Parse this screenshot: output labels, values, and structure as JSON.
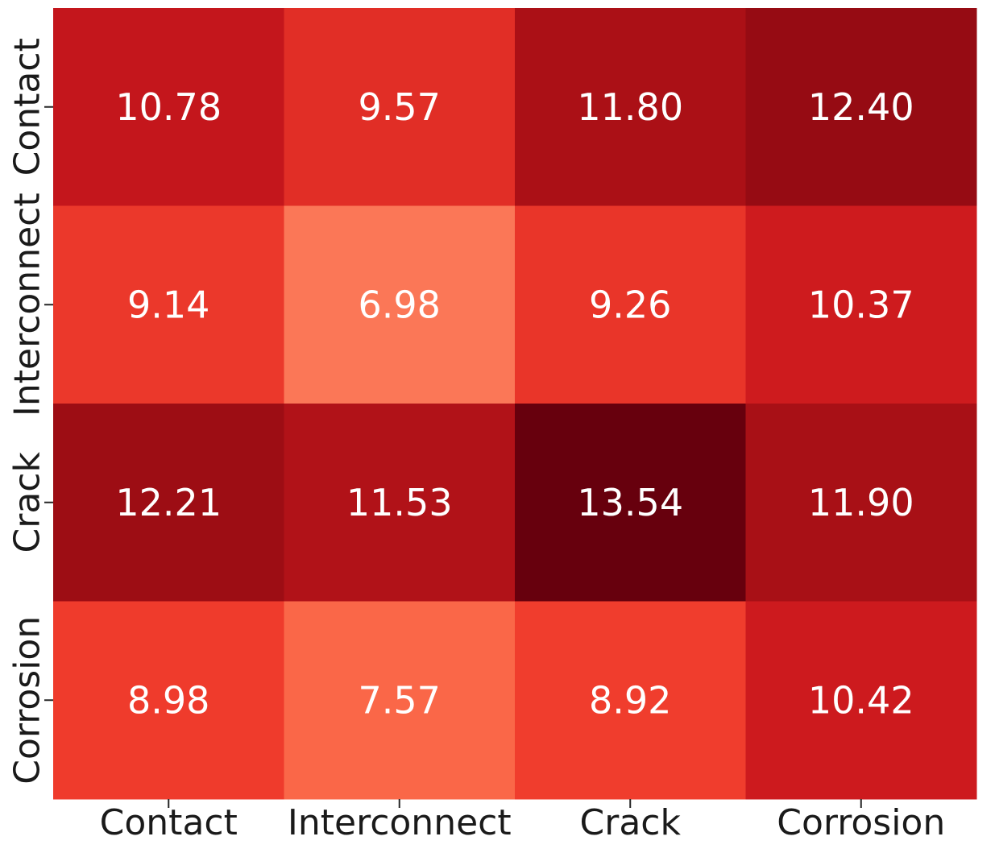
{
  "chart_data": {
    "type": "heatmap",
    "title": "",
    "xlabel": "",
    "ylabel": "",
    "x_categories": [
      "Contact",
      "Interconnect",
      "Crack",
      "Corrosion"
    ],
    "y_categories": [
      "Contact",
      "Interconnect",
      "Crack",
      "Corrosion"
    ],
    "values": [
      [
        10.78,
        9.57,
        11.8,
        12.4
      ],
      [
        9.14,
        6.98,
        9.26,
        10.37
      ],
      [
        12.21,
        11.53,
        13.54,
        11.9
      ],
      [
        8.98,
        7.57,
        8.92,
        10.42
      ]
    ],
    "value_labels": [
      [
        "10.78",
        "9.57",
        "11.80",
        "12.40"
      ],
      [
        "9.14",
        "6.98",
        "9.26",
        "10.37"
      ],
      [
        "12.21",
        "11.53",
        "13.54",
        "11.90"
      ],
      [
        "8.98",
        "7.57",
        "8.92",
        "10.42"
      ]
    ],
    "colormap": "Reds",
    "colorbar": false,
    "grid": false
  },
  "colors": {
    "cell_text": "#ffffff",
    "tick_text": "#1a1a1a",
    "tick_mark": "#262626",
    "colormap_stops": [
      "#fff5f0",
      "#fee0d2",
      "#fcbba1",
      "#fc9272",
      "#fb6a4a",
      "#ef3b2c",
      "#cb181d",
      "#a50f15",
      "#67000d"
    ]
  }
}
